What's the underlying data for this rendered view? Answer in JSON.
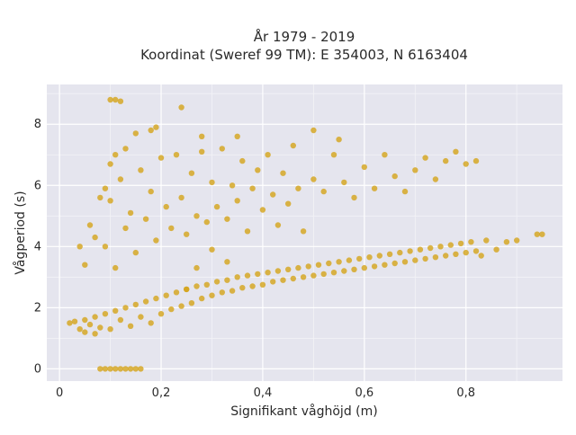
{
  "chart_data": {
    "type": "scatter",
    "title": "År 1979 - 2019",
    "subtitle": "Koordinat (Sweref 99 TM): E 354003, N 6163404",
    "xlabel": "Signifikant våghöjd (m)",
    "ylabel": "Vågperiod (s)",
    "xlim": [
      -0.025,
      0.99
    ],
    "ylim": [
      -0.4,
      9.3
    ],
    "x_ticks": [
      0,
      0.2,
      0.4,
      0.6,
      0.8
    ],
    "x_tick_labels": [
      "0",
      "0,2",
      "0,4",
      "0,6",
      "0,8"
    ],
    "y_ticks": [
      0,
      2,
      4,
      6,
      8
    ],
    "y_tick_labels": [
      "0",
      "2",
      "4",
      "6",
      "8"
    ],
    "grid": true,
    "legend": "none",
    "marker_color": "#D4A419",
    "background_color": "#E5E5EE",
    "series": [
      {
        "points": [
          [
            0.02,
            1.5
          ],
          [
            0.03,
            1.55
          ],
          [
            0.04,
            1.3
          ],
          [
            0.05,
            1.2
          ],
          [
            0.05,
            1.6
          ],
          [
            0.06,
            1.45
          ],
          [
            0.07,
            1.15
          ],
          [
            0.07,
            1.7
          ],
          [
            0.08,
            1.35
          ],
          [
            0.09,
            1.8
          ],
          [
            0.1,
            1.3
          ],
          [
            0.11,
            1.9
          ],
          [
            0.12,
            1.6
          ],
          [
            0.13,
            2.0
          ],
          [
            0.14,
            1.4
          ],
          [
            0.15,
            2.1
          ],
          [
            0.16,
            1.7
          ],
          [
            0.17,
            2.2
          ],
          [
            0.18,
            1.5
          ],
          [
            0.19,
            2.3
          ],
          [
            0.2,
            1.8
          ],
          [
            0.21,
            2.4
          ],
          [
            0.22,
            1.95
          ],
          [
            0.23,
            2.5
          ],
          [
            0.24,
            2.05
          ],
          [
            0.25,
            2.6
          ],
          [
            0.26,
            2.15
          ],
          [
            0.27,
            2.7
          ],
          [
            0.28,
            2.3
          ],
          [
            0.29,
            2.75
          ],
          [
            0.3,
            2.4
          ],
          [
            0.31,
            2.85
          ],
          [
            0.32,
            2.5
          ],
          [
            0.33,
            2.9
          ],
          [
            0.34,
            2.55
          ],
          [
            0.35,
            3.0
          ],
          [
            0.36,
            2.65
          ],
          [
            0.37,
            3.05
          ],
          [
            0.38,
            2.7
          ],
          [
            0.39,
            3.1
          ],
          [
            0.4,
            2.75
          ],
          [
            0.41,
            3.15
          ],
          [
            0.42,
            2.85
          ],
          [
            0.43,
            3.2
          ],
          [
            0.44,
            2.9
          ],
          [
            0.45,
            3.25
          ],
          [
            0.46,
            2.95
          ],
          [
            0.47,
            3.3
          ],
          [
            0.48,
            3.0
          ],
          [
            0.49,
            3.35
          ],
          [
            0.5,
            3.05
          ],
          [
            0.51,
            3.4
          ],
          [
            0.52,
            3.1
          ],
          [
            0.53,
            3.45
          ],
          [
            0.54,
            3.15
          ],
          [
            0.55,
            3.5
          ],
          [
            0.56,
            3.2
          ],
          [
            0.57,
            3.55
          ],
          [
            0.58,
            3.25
          ],
          [
            0.59,
            3.6
          ],
          [
            0.6,
            3.3
          ],
          [
            0.61,
            3.65
          ],
          [
            0.62,
            3.35
          ],
          [
            0.63,
            3.7
          ],
          [
            0.64,
            3.4
          ],
          [
            0.65,
            3.75
          ],
          [
            0.66,
            3.45
          ],
          [
            0.67,
            3.8
          ],
          [
            0.68,
            3.5
          ],
          [
            0.69,
            3.85
          ],
          [
            0.7,
            3.55
          ],
          [
            0.71,
            3.9
          ],
          [
            0.72,
            3.6
          ],
          [
            0.73,
            3.95
          ],
          [
            0.74,
            3.65
          ],
          [
            0.75,
            4.0
          ],
          [
            0.76,
            3.7
          ],
          [
            0.77,
            4.05
          ],
          [
            0.78,
            3.75
          ],
          [
            0.79,
            4.1
          ],
          [
            0.8,
            3.8
          ],
          [
            0.81,
            4.15
          ],
          [
            0.82,
            3.85
          ],
          [
            0.84,
            4.2
          ],
          [
            0.86,
            3.9
          ],
          [
            0.88,
            4.15
          ],
          [
            0.9,
            4.2
          ],
          [
            0.94,
            4.4
          ],
          [
            0.95,
            4.4
          ],
          [
            0.83,
            3.7
          ],
          [
            0.09,
            4.0
          ],
          [
            0.1,
            5.5
          ],
          [
            0.11,
            3.3
          ],
          [
            0.12,
            6.2
          ],
          [
            0.13,
            4.6
          ],
          [
            0.14,
            5.1
          ],
          [
            0.15,
            3.8
          ],
          [
            0.16,
            6.5
          ],
          [
            0.17,
            4.9
          ],
          [
            0.18,
            5.8
          ],
          [
            0.19,
            4.2
          ],
          [
            0.2,
            6.9
          ],
          [
            0.21,
            5.3
          ],
          [
            0.22,
            4.6
          ],
          [
            0.23,
            7.0
          ],
          [
            0.24,
            5.6
          ],
          [
            0.25,
            4.4
          ],
          [
            0.26,
            6.4
          ],
          [
            0.27,
            5.0
          ],
          [
            0.28,
            7.1
          ],
          [
            0.29,
            4.8
          ],
          [
            0.3,
            6.1
          ],
          [
            0.31,
            5.3
          ],
          [
            0.32,
            7.2
          ],
          [
            0.33,
            4.9
          ],
          [
            0.34,
            6.0
          ],
          [
            0.35,
            5.5
          ],
          [
            0.36,
            6.8
          ],
          [
            0.37,
            4.5
          ],
          [
            0.38,
            5.9
          ],
          [
            0.39,
            6.5
          ],
          [
            0.4,
            5.2
          ],
          [
            0.41,
            7.0
          ],
          [
            0.42,
            5.7
          ],
          [
            0.43,
            4.7
          ],
          [
            0.44,
            6.4
          ],
          [
            0.45,
            5.4
          ],
          [
            0.46,
            7.3
          ],
          [
            0.47,
            5.9
          ],
          [
            0.48,
            4.5
          ],
          [
            0.5,
            6.2
          ],
          [
            0.52,
            5.8
          ],
          [
            0.54,
            7.0
          ],
          [
            0.56,
            6.1
          ],
          [
            0.58,
            5.6
          ],
          [
            0.6,
            6.6
          ],
          [
            0.62,
            5.9
          ],
          [
            0.64,
            7.0
          ],
          [
            0.66,
            6.3
          ],
          [
            0.68,
            5.8
          ],
          [
            0.7,
            6.5
          ],
          [
            0.72,
            6.9
          ],
          [
            0.74,
            6.2
          ],
          [
            0.76,
            6.8
          ],
          [
            0.78,
            7.1
          ],
          [
            0.8,
            6.7
          ],
          [
            0.82,
            6.8
          ],
          [
            0.55,
            7.5
          ],
          [
            0.5,
            7.8
          ],
          [
            0.35,
            7.6
          ],
          [
            0.04,
            4.0
          ],
          [
            0.05,
            3.4
          ],
          [
            0.06,
            4.7
          ],
          [
            0.07,
            4.3
          ],
          [
            0.08,
            5.6
          ],
          [
            0.09,
            5.9
          ],
          [
            0.1,
            6.7
          ],
          [
            0.11,
            7.0
          ],
          [
            0.1,
            8.8
          ],
          [
            0.11,
            8.8
          ],
          [
            0.12,
            8.75
          ],
          [
            0.24,
            8.55
          ],
          [
            0.28,
            7.6
          ],
          [
            0.13,
            7.2
          ],
          [
            0.15,
            7.7
          ],
          [
            0.18,
            7.8
          ],
          [
            0.19,
            7.9
          ],
          [
            0.08,
            0.0
          ],
          [
            0.09,
            0.0
          ],
          [
            0.1,
            0.0
          ],
          [
            0.11,
            0.0
          ],
          [
            0.12,
            0.0
          ],
          [
            0.13,
            0.0
          ],
          [
            0.14,
            0.0
          ],
          [
            0.15,
            0.0
          ],
          [
            0.16,
            0.0
          ],
          [
            0.25,
            2.6
          ],
          [
            0.3,
            3.9
          ],
          [
            0.27,
            3.3
          ],
          [
            0.33,
            3.5
          ]
        ]
      }
    ]
  }
}
